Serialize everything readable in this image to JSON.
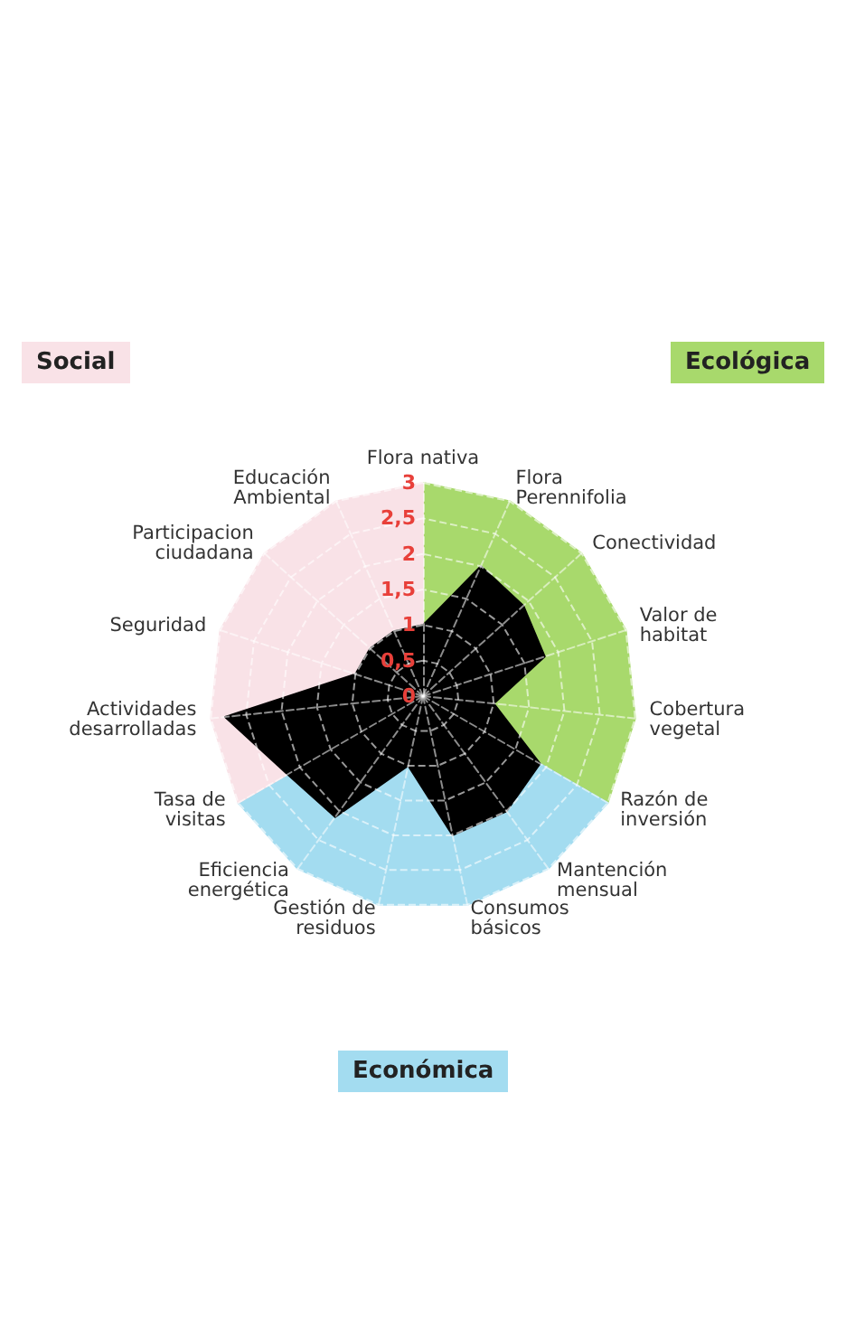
{
  "chart_data": {
    "type": "radar",
    "categories": [
      "Flora nativa",
      "Flora Perennifolia",
      "Conectividad",
      "Valor de habitat",
      "Cobertura vegetal",
      "Razón de inversión",
      "Mantención mensual",
      "Consumos básicos",
      "Gestión de residuos",
      "Eficiencia energética",
      "Tasa de visitas",
      "Actividades desarrolladas",
      "Seguridad",
      "Participacion ciudadana",
      "Educación Ambiental"
    ],
    "series": [
      {
        "name": "Ecológica",
        "color": "#a8d96c",
        "values": [
          3,
          3,
          3,
          3,
          3,
          3,
          null,
          null,
          null,
          null,
          null,
          null,
          null,
          null,
          null
        ]
      },
      {
        "name": "Económica",
        "color": "#a3dcf0",
        "values": [
          null,
          null,
          null,
          null,
          null,
          3,
          3,
          3,
          3,
          3,
          3,
          null,
          null,
          null,
          null
        ]
      },
      {
        "name": "Social",
        "color": "#f9e2e7",
        "values": [
          3,
          null,
          null,
          null,
          null,
          null,
          null,
          null,
          null,
          null,
          3,
          3,
          3,
          3,
          3
        ]
      },
      {
        "color": "#000000",
        "values": [
          1,
          2,
          1.9,
          1.8,
          1,
          1.9,
          2,
          2,
          1,
          2.1,
          2.2,
          2.8,
          1,
          1,
          1
        ]
      }
    ],
    "ylim": [
      0,
      3
    ],
    "yticks": [
      0,
      {
        "value": 0.5,
        "label": "0,5"
      },
      1,
      {
        "value": 1.5,
        "label": "1,5"
      },
      2,
      {
        "value": 2.5,
        "label": "2,5"
      },
      3
    ],
    "grid": true
  }
}
